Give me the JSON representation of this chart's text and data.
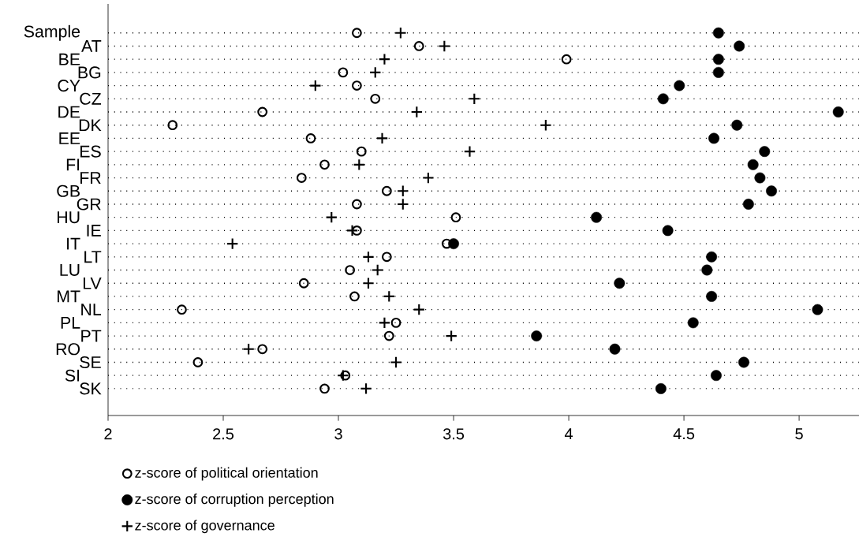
{
  "chart_data": {
    "type": "scatter",
    "orientation": "horizontal",
    "categories": [
      "Sample",
      "AT",
      "BE",
      "BG",
      "CY",
      "CZ",
      "DE",
      "DK",
      "EE",
      "ES",
      "FI",
      "FR",
      "GB",
      "GR",
      "HU",
      "IE",
      "IT",
      "LT",
      "LU",
      "LV",
      "MT",
      "NL",
      "PL",
      "PT",
      "RO",
      "SE",
      "SI",
      "SK"
    ],
    "series": [
      {
        "name": "z-score of political orientation",
        "color": "#000000",
        "marker": "circle-open",
        "values": [
          3.08,
          3.35,
          3.99,
          3.02,
          3.08,
          3.16,
          2.67,
          2.28,
          2.88,
          3.1,
          2.94,
          2.84,
          3.21,
          3.08,
          3.51,
          3.08,
          3.47,
          3.21,
          3.05,
          2.85,
          3.07,
          2.32,
          3.25,
          3.22,
          2.67,
          2.39,
          3.03,
          2.94
        ]
      },
      {
        "name": "z-score of corruption perception",
        "color": "#000000",
        "marker": "circle",
        "values": [
          4.65,
          4.74,
          4.65,
          4.65,
          4.48,
          4.41,
          5.17,
          4.73,
          4.63,
          4.85,
          4.8,
          4.83,
          4.88,
          4.78,
          4.12,
          4.43,
          3.5,
          4.62,
          4.6,
          4.22,
          4.62,
          5.08,
          4.54,
          3.86,
          4.2,
          4.76,
          4.64,
          4.4
        ]
      },
      {
        "name": "z-score of governance",
        "color": "#000000",
        "marker": "cross",
        "values": [
          3.27,
          3.46,
          3.2,
          3.16,
          2.9,
          3.59,
          3.34,
          3.9,
          3.19,
          3.57,
          3.09,
          3.39,
          3.28,
          3.28,
          2.97,
          3.06,
          2.54,
          3.13,
          3.17,
          3.13,
          3.22,
          3.35,
          3.2,
          3.49,
          2.61,
          3.25,
          3.02,
          3.12
        ]
      }
    ],
    "xlim": [
      2,
      5.26
    ],
    "xticks": [
      2,
      2.5,
      3,
      3.5,
      4,
      4.5,
      5
    ],
    "grid": "y",
    "legend": "bottom"
  }
}
